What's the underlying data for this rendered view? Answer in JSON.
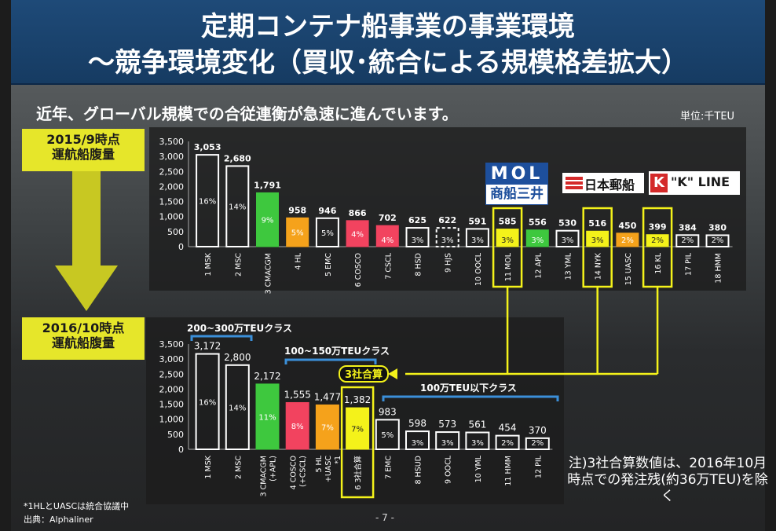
{
  "header": {
    "title_line1": "定期コンテナ船事業の事業環境",
    "title_line2": "～競争環境変化（買収･統合による規模格差拡大）"
  },
  "subtitle": "近年、グローバル規模での合従連衡が急速に進んでいます。",
  "unit": "単位:千TEU",
  "period_2015": {
    "line1": "2015/9時点",
    "line2": "運航船腹量"
  },
  "period_2016": {
    "line1": "2016/10時点",
    "line2": "運航船腹量"
  },
  "logos": {
    "mol_top": "MOL",
    "mol_bottom": "商船三井",
    "nyk": "日本郵船",
    "kline_mark": "K",
    "kline_text": "\"K\" LINE"
  },
  "class_labels": {
    "large": "200~300万TEUクラス",
    "mid": "100~150万TEUクラス",
    "small": "100万TEU以下クラス",
    "combined": "3社合算"
  },
  "note": "注)3社合算数値は、2016年10月時点での発注残(約36万TEU)を除く",
  "footnote": "*1HLとUASCは統合協議中",
  "source": "出典：Alphaliner",
  "page_number": "- 7 -",
  "colors": {
    "green": "#3ec83e",
    "orange": "#f5a21b",
    "pink": "#f2435f",
    "yellow": "#f4f21a",
    "hollow": "#ffffff",
    "highlight": "#f4f21a",
    "bracket": "#3b8fd9"
  },
  "chart_data": [
    {
      "type": "bar",
      "title": "2015/9時点 運航船腹量",
      "ylabel": "",
      "ylim": [
        0,
        3500
      ],
      "yticks": [
        "0",
        "500",
        "1,000",
        "1,500",
        "2,000",
        "2,500",
        "3,000",
        "3,500"
      ],
      "categories": [
        "1 MSK",
        "2 MSC",
        "3 CMACGM",
        "4 HL",
        "5 EMC",
        "6 COSCO",
        "7 CSCL",
        "8 HSD",
        "9 HJS",
        "10 OOCL",
        "11 MOL",
        "12 APL",
        "13 YML",
        "14 NYK",
        "15 UASC",
        "16 KL",
        "17 PIL",
        "18 HMM"
      ],
      "values": [
        3053,
        2680,
        1791,
        958,
        946,
        866,
        702,
        625,
        622,
        591,
        585,
        556,
        530,
        516,
        450,
        399,
        384,
        380
      ],
      "value_labels": [
        "3,053",
        "2,680",
        "1,791",
        "958",
        "946",
        "866",
        "702",
        "625",
        "622",
        "591",
        "585",
        "556",
        "530",
        "516",
        "450",
        "399",
        "384",
        "380"
      ],
      "share_labels": [
        "16%",
        "14%",
        "9%",
        "5%",
        "5%",
        "4%",
        "4%",
        "3%",
        "3%",
        "3%",
        "3%",
        "3%",
        "3%",
        "3%",
        "2%",
        "2%",
        "2%",
        "2%"
      ],
      "fills": [
        "hollow",
        "hollow",
        "green",
        "orange",
        "hollow",
        "pink",
        "pink",
        "hollow",
        "hollow-dashed",
        "hollow",
        "yellow",
        "green",
        "hollow",
        "yellow",
        "orange",
        "yellow",
        "hollow",
        "hollow"
      ],
      "highlighted": [
        "11 MOL",
        "14 NYK",
        "16 KL"
      ]
    },
    {
      "type": "bar",
      "title": "2016/10時点 運航船腹量",
      "ylabel": "",
      "ylim": [
        0,
        3500
      ],
      "yticks": [
        "0",
        "500",
        "1,000",
        "1,500",
        "2,000",
        "2,500",
        "3,000",
        "3,500"
      ],
      "categories": [
        [
          "1 MSK"
        ],
        [
          "2 MSC"
        ],
        [
          "3 CMACGM",
          "(+APL)"
        ],
        [
          "4 COSCO",
          "(+CSCL)"
        ],
        [
          "5 HL",
          "+UASC",
          "*1"
        ],
        [
          "6 3社合算"
        ],
        [
          "7 EMC"
        ],
        [
          "8 HSUD"
        ],
        [
          "9 OOCL"
        ],
        [
          "10 YML"
        ],
        [
          "11 HMM"
        ],
        [
          "12 PIL"
        ]
      ],
      "values": [
        3172,
        2800,
        2172,
        1555,
        1477,
        1382,
        983,
        598,
        573,
        561,
        454,
        370
      ],
      "value_labels": [
        "3,172",
        "2,800",
        "2,172",
        "1,555",
        "1,477",
        "1,382",
        "983",
        "598",
        "573",
        "561",
        "454",
        "370"
      ],
      "share_labels": [
        "16%",
        "14%",
        "11%",
        "8%",
        "7%",
        "7%",
        "5%",
        "3%",
        "3%",
        "3%",
        "2%",
        "2%"
      ],
      "fills": [
        "hollow",
        "hollow",
        "green",
        "pink",
        "orange",
        "yellow",
        "hollow",
        "hollow",
        "hollow",
        "hollow",
        "hollow",
        "hollow"
      ],
      "highlighted": [
        "6 3社合算"
      ]
    }
  ]
}
